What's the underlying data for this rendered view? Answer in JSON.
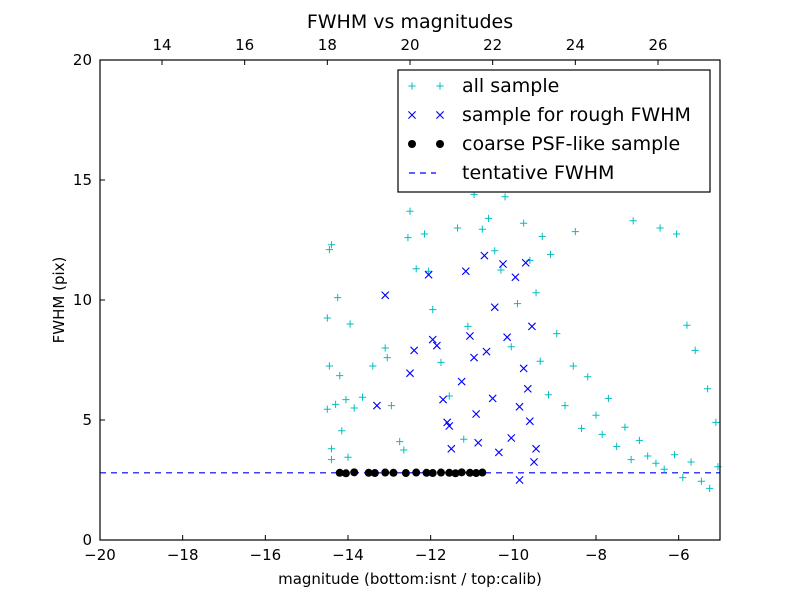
{
  "chart_data": {
    "type": "scatter",
    "title": "FWHM vs magnitudes",
    "xlabel": "magnitude (bottom:isnt / top:calib)",
    "ylabel": "FWHM (pix)",
    "xlim": [
      -20,
      -5
    ],
    "ylim": [
      0,
      20
    ],
    "x_ticks": [
      -20,
      -18,
      -16,
      -14,
      -12,
      -10,
      -8,
      -6
    ],
    "y_ticks": [
      0,
      5,
      10,
      15,
      20
    ],
    "top_axis": {
      "ticks": [
        14,
        16,
        18,
        20,
        22,
        24,
        26
      ],
      "offset_from_bottom": 32.5
    },
    "grid": false,
    "legend_position": "top-right",
    "tentative_fwhm": 2.8,
    "series": [
      {
        "name": "all sample",
        "marker": "+",
        "color": "#00bfbf",
        "points": [
          [
            -14.5,
            9.25
          ],
          [
            -14.45,
            12.1
          ],
          [
            -14.4,
            12.3
          ],
          [
            -14.45,
            7.25
          ],
          [
            -14.5,
            5.45
          ],
          [
            -14.3,
            5.65
          ],
          [
            -14.4,
            3.8
          ],
          [
            -14.4,
            3.35
          ],
          [
            -14.25,
            10.1
          ],
          [
            -14.2,
            6.85
          ],
          [
            -14.05,
            5.85
          ],
          [
            -14.15,
            4.55
          ],
          [
            -14.0,
            3.45
          ],
          [
            -13.95,
            9.0
          ],
          [
            -13.85,
            5.5
          ],
          [
            -13.65,
            5.95
          ],
          [
            -13.4,
            7.25
          ],
          [
            -13.1,
            8.0
          ],
          [
            -13.05,
            7.6
          ],
          [
            -12.95,
            5.6
          ],
          [
            -12.75,
            4.1
          ],
          [
            -12.65,
            3.75
          ],
          [
            -12.55,
            12.6
          ],
          [
            -12.5,
            13.7
          ],
          [
            -12.35,
            11.3
          ],
          [
            -12.15,
            12.75
          ],
          [
            -12.05,
            11.2
          ],
          [
            -11.95,
            9.6
          ],
          [
            -11.75,
            7.4
          ],
          [
            -11.55,
            6.0
          ],
          [
            -11.45,
            14.8
          ],
          [
            -11.35,
            13.0
          ],
          [
            -11.2,
            4.2
          ],
          [
            -11.1,
            8.9
          ],
          [
            -10.95,
            14.4
          ],
          [
            -10.75,
            12.95
          ],
          [
            -10.6,
            13.4
          ],
          [
            -10.45,
            12.05
          ],
          [
            -10.3,
            11.25
          ],
          [
            -10.2,
            14.3
          ],
          [
            -10.05,
            8.05
          ],
          [
            -9.9,
            9.85
          ],
          [
            -9.75,
            13.2
          ],
          [
            -9.6,
            11.65
          ],
          [
            -9.45,
            10.3
          ],
          [
            -9.3,
            12.65
          ],
          [
            -9.1,
            11.9
          ],
          [
            -8.9,
            14.75
          ],
          [
            -8.7,
            17.1
          ],
          [
            -8.5,
            12.85
          ],
          [
            -8.3,
            18.95
          ],
          [
            -8.05,
            16.25
          ],
          [
            -7.9,
            19.3
          ],
          [
            -7.6,
            17.9
          ],
          [
            -7.35,
            19.4
          ],
          [
            -7.1,
            13.3
          ],
          [
            -6.95,
            16.85
          ],
          [
            -6.7,
            15.1
          ],
          [
            -6.45,
            13.0
          ],
          [
            -6.05,
            12.75
          ],
          [
            -5.8,
            8.95
          ],
          [
            -5.6,
            7.9
          ],
          [
            -5.3,
            6.3
          ],
          [
            -5.1,
            4.9
          ],
          [
            -5.05,
            3.05
          ],
          [
            -9.35,
            7.45
          ],
          [
            -9.15,
            6.05
          ],
          [
            -8.95,
            8.6
          ],
          [
            -8.75,
            5.6
          ],
          [
            -8.55,
            7.25
          ],
          [
            -8.35,
            4.65
          ],
          [
            -8.2,
            6.8
          ],
          [
            -8.0,
            5.2
          ],
          [
            -7.85,
            4.4
          ],
          [
            -7.7,
            5.9
          ],
          [
            -7.5,
            3.9
          ],
          [
            -7.3,
            4.7
          ],
          [
            -7.15,
            3.35
          ],
          [
            -6.95,
            4.15
          ],
          [
            -6.75,
            3.5
          ],
          [
            -6.55,
            3.2
          ],
          [
            -6.35,
            2.95
          ],
          [
            -6.1,
            3.55
          ],
          [
            -5.9,
            2.6
          ],
          [
            -5.7,
            3.25
          ],
          [
            -5.45,
            2.45
          ],
          [
            -5.25,
            2.15
          ]
        ]
      },
      {
        "name": "sample for rough FWHM",
        "marker": "x",
        "color": "#0000ff",
        "points": [
          [
            -13.1,
            10.2
          ],
          [
            -13.3,
            5.6
          ],
          [
            -12.5,
            6.95
          ],
          [
            -12.4,
            7.9
          ],
          [
            -12.05,
            11.05
          ],
          [
            -11.95,
            8.35
          ],
          [
            -11.85,
            8.1
          ],
          [
            -11.7,
            5.85
          ],
          [
            -11.6,
            4.9
          ],
          [
            -11.55,
            4.75
          ],
          [
            -11.5,
            3.8
          ],
          [
            -11.25,
            6.6
          ],
          [
            -11.15,
            11.2
          ],
          [
            -11.05,
            8.5
          ],
          [
            -10.95,
            7.6
          ],
          [
            -10.9,
            5.25
          ],
          [
            -10.85,
            4.05
          ],
          [
            -10.7,
            11.85
          ],
          [
            -10.65,
            7.85
          ],
          [
            -10.5,
            5.9
          ],
          [
            -10.45,
            9.7
          ],
          [
            -10.35,
            3.65
          ],
          [
            -10.25,
            11.5
          ],
          [
            -10.15,
            8.45
          ],
          [
            -10.05,
            4.25
          ],
          [
            -9.95,
            10.95
          ],
          [
            -9.85,
            5.55
          ],
          [
            -9.75,
            7.15
          ],
          [
            -9.7,
            11.55
          ],
          [
            -9.65,
            6.3
          ],
          [
            -9.6,
            4.95
          ],
          [
            -9.55,
            8.9
          ],
          [
            -9.5,
            3.25
          ],
          [
            -9.45,
            3.8
          ],
          [
            -9.85,
            2.5
          ]
        ]
      },
      {
        "name": "coarse PSF-like sample",
        "marker": "o",
        "color": "#000000",
        "points": [
          [
            -14.2,
            2.8
          ],
          [
            -14.05,
            2.78
          ],
          [
            -13.85,
            2.82
          ],
          [
            -13.5,
            2.8
          ],
          [
            -13.35,
            2.79
          ],
          [
            -13.1,
            2.81
          ],
          [
            -12.9,
            2.8
          ],
          [
            -12.6,
            2.79
          ],
          [
            -12.35,
            2.81
          ],
          [
            -12.1,
            2.8
          ],
          [
            -11.95,
            2.79
          ],
          [
            -11.75,
            2.81
          ],
          [
            -11.55,
            2.8
          ],
          [
            -11.4,
            2.78
          ],
          [
            -11.25,
            2.82
          ],
          [
            -11.05,
            2.8
          ],
          [
            -10.9,
            2.79
          ],
          [
            -10.75,
            2.81
          ]
        ]
      }
    ],
    "legend": [
      {
        "label": "all sample",
        "marker": "+",
        "color": "#00bfbf"
      },
      {
        "label": "sample for rough FWHM",
        "marker": "x",
        "color": "#0000ff"
      },
      {
        "label": "coarse PSF-like sample",
        "marker": "o",
        "color": "#000000"
      },
      {
        "label": "tentative FWHM",
        "marker": "dash",
        "color": "#0000ff"
      }
    ]
  }
}
